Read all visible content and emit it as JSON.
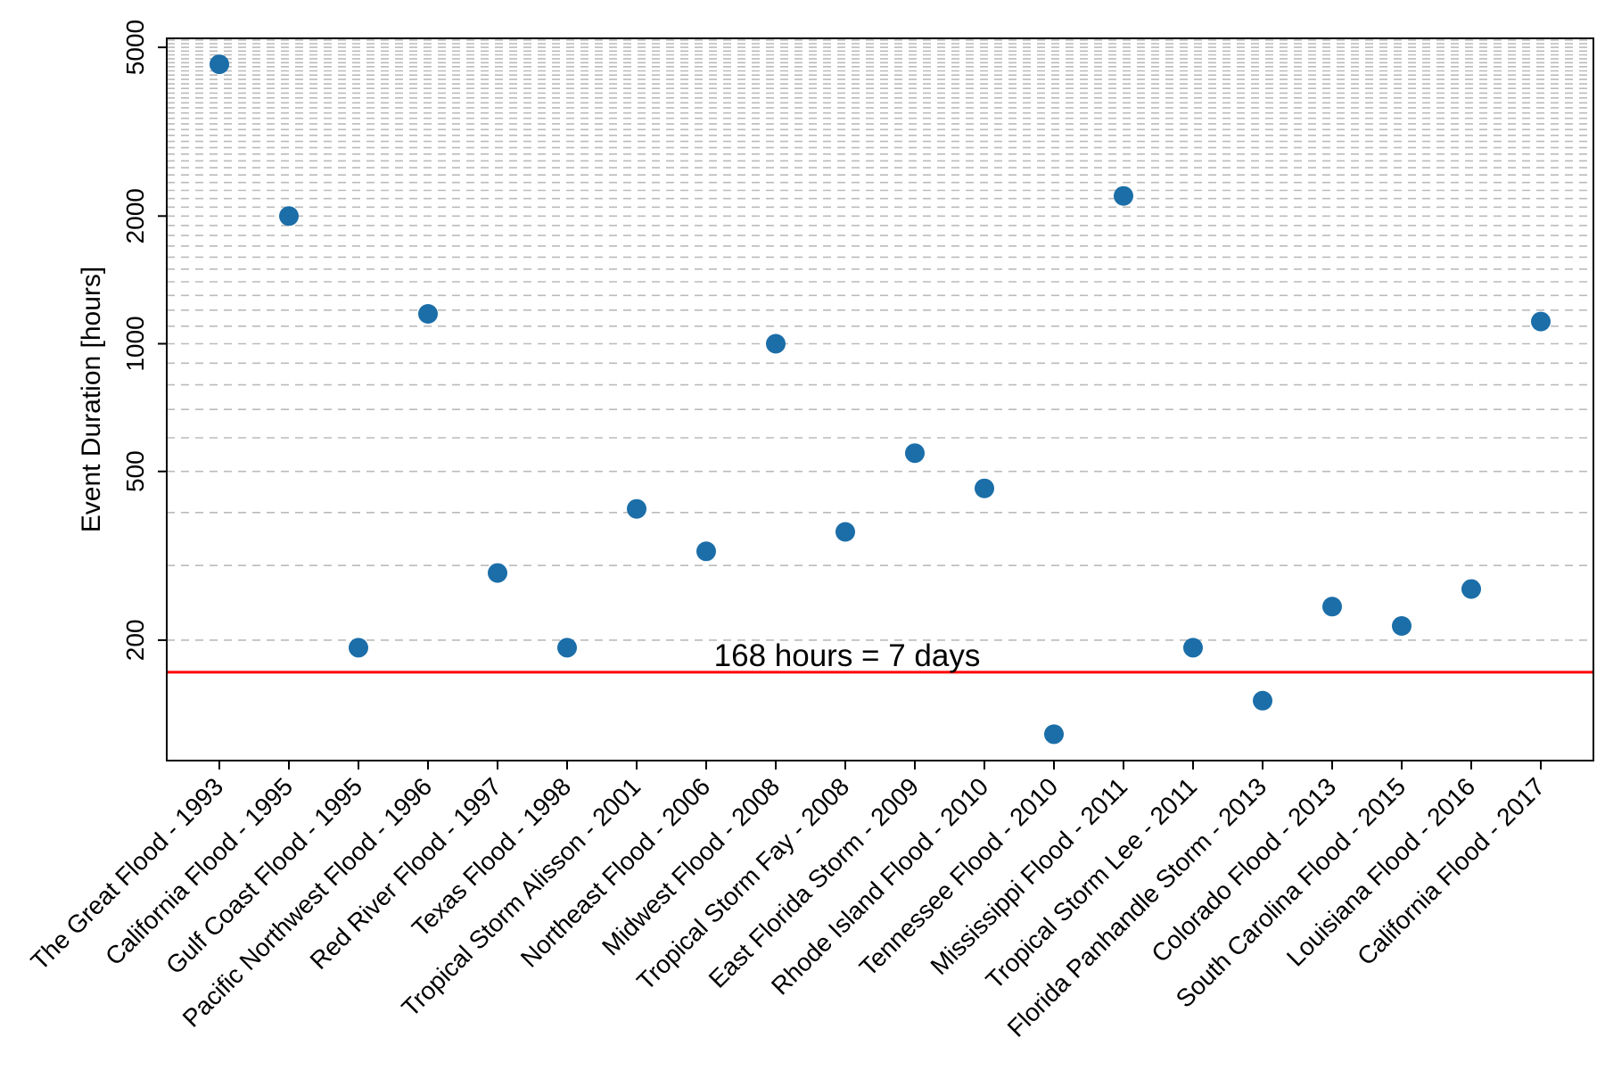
{
  "chart_data": {
    "type": "scatter",
    "title": "",
    "xlabel": "",
    "ylabel": "Event Duration [hours]",
    "y_scale": "log",
    "ylim": [
      104,
      5250
    ],
    "y_major_ticks": [
      5000,
      2000,
      1000,
      500,
      200
    ],
    "y_major_tick_labels": [
      "5000",
      "2000",
      "1000",
      "500",
      "200"
    ],
    "y_minor_gridlines": {
      "step": 100,
      "from": 200,
      "to": 5200,
      "style": "dashed"
    },
    "grid": "horizontal dashed minor gridlines only",
    "legend_position": "none",
    "categories": [
      "The Great Flood - 1993",
      "California Flood - 1995",
      "Gulf Coast Flood - 1995",
      "Pacific Northwest Flood - 1996",
      "Red River Flood - 1997",
      "Texas Flood - 1998",
      "Tropical Storm Alisson - 2001",
      "Northeast Flood - 2006",
      "Midwest Flood - 2008",
      "Tropical Storm Fay - 2008",
      "East Florida Storm - 2009",
      "Rhode Island Flood - 2010",
      "Tennessee Flood - 2010",
      "Mississippi Flood - 2011",
      "Tropical Storm Lee - 2011",
      "Florida Panhandle Storm - 2013",
      "Colorado Flood - 2013",
      "South Carolina Flood - 2015",
      "Louisiana Flood - 2016",
      "California Flood - 2017"
    ],
    "values": [
      4560,
      2000,
      192,
      1176,
      288,
      192,
      408,
      324,
      1000,
      360,
      552,
      456,
      120,
      2232,
      192,
      144,
      240,
      216,
      264,
      1128
    ],
    "annotation": {
      "text": "168 hours = 7 days",
      "value": 168,
      "color": "#ff0000"
    }
  },
  "style": {
    "point_color": "#1b6ea8",
    "grid_color": "#bbbbbb",
    "axis_color": "#000000",
    "threshold_color": "#ff0000",
    "background_color": "#ffffff"
  }
}
